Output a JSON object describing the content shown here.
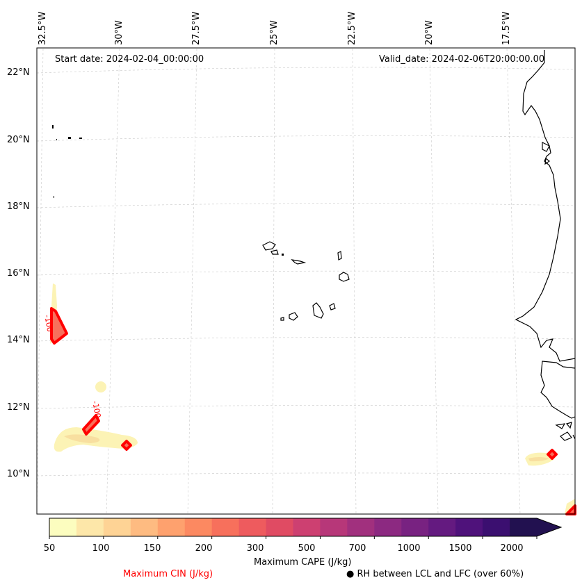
{
  "map": {
    "start_date": "Start date: 2024-02-04_00:00:00",
    "valid_date": "Valid_date: 2024-02-06T20:00:00.00",
    "lon_labels": [
      "32.5°W",
      "30°W",
      "27.5°W",
      "25°W",
      "22.5°W",
      "20°W",
      "17.5°W"
    ],
    "lat_labels": [
      "22°N",
      "20°N",
      "18°N",
      "16°N",
      "14°N",
      "12°N",
      "10°N"
    ],
    "contour_labels": [
      "-100",
      "-100"
    ]
  },
  "colorbar": {
    "ticks": [
      "50",
      "100",
      "150",
      "200",
      "300",
      "500",
      "700",
      "1000",
      "1500",
      "2000"
    ],
    "label": "Maximum CAPE (J/kg)",
    "cin_label": "Maximum CIN (J/kg)",
    "rh_label": "RH between LCL and LFC (over 60%)",
    "colors": [
      "#fcfdbf",
      "#fde7a9",
      "#fed395",
      "#febb81",
      "#fea16e",
      "#fc8961",
      "#f7705c",
      "#ee5b5e",
      "#e04b63",
      "#cd4071",
      "#b73779",
      "#a1307e",
      "#8c2981",
      "#782281",
      "#641a80",
      "#4f127b",
      "#3b0f70",
      "#221150"
    ],
    "cin_color": "#ff0000"
  }
}
